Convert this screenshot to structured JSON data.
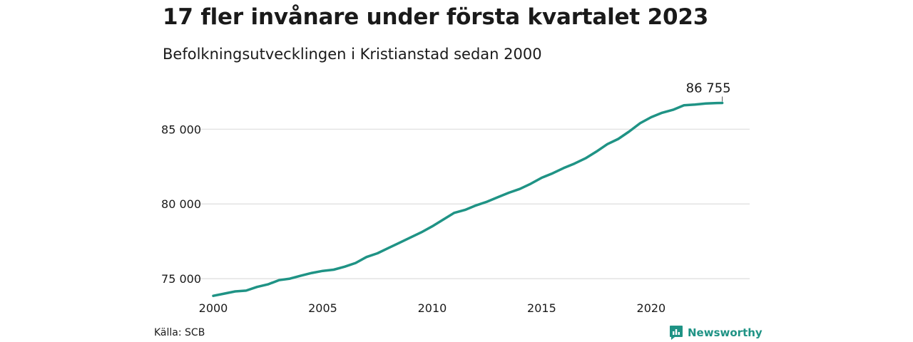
{
  "header": {
    "title": "17 fler invånare under första kvartalet 2023",
    "subtitle": "Befolkningsutvecklingen i Kristianstad sedan 2000"
  },
  "footer": {
    "source": "Källa: SCB",
    "brand": "Newsworthy",
    "brand_icon": "newsworthy-logo-icon"
  },
  "colors": {
    "line": "#1f9385",
    "grid": "#dddddd",
    "brand": "#1f9385"
  },
  "chart_data": {
    "type": "line",
    "x_axis": {
      "ticks": [
        "2000",
        "2005",
        "2010",
        "2015",
        "2020"
      ],
      "range": [
        2000,
        2024.5
      ]
    },
    "y_axis": {
      "ticks": [
        "75 000",
        "80 000",
        "85 000"
      ],
      "range": [
        74100,
        88400
      ]
    },
    "grid": "horizontal",
    "end_label": "86 755",
    "series": [
      {
        "points": [
          [
            2000.0,
            73850
          ],
          [
            2000.5,
            74000
          ],
          [
            2001.0,
            74150
          ],
          [
            2001.5,
            74200
          ],
          [
            2002.0,
            74450
          ],
          [
            2002.5,
            74620
          ],
          [
            2003.0,
            74900
          ],
          [
            2003.5,
            75000
          ],
          [
            2004.0,
            75200
          ],
          [
            2004.5,
            75380
          ],
          [
            2005.0,
            75520
          ],
          [
            2005.5,
            75600
          ],
          [
            2006.0,
            75800
          ],
          [
            2006.5,
            76050
          ],
          [
            2007.0,
            76450
          ],
          [
            2007.5,
            76700
          ],
          [
            2008.0,
            77050
          ],
          [
            2008.5,
            77400
          ],
          [
            2009.0,
            77750
          ],
          [
            2009.5,
            78100
          ],
          [
            2010.0,
            78500
          ],
          [
            2010.5,
            78950
          ],
          [
            2011.0,
            79400
          ],
          [
            2011.5,
            79600
          ],
          [
            2012.0,
            79900
          ],
          [
            2012.5,
            80150
          ],
          [
            2013.0,
            80450
          ],
          [
            2013.5,
            80750
          ],
          [
            2014.0,
            81000
          ],
          [
            2014.5,
            81350
          ],
          [
            2015.0,
            81750
          ],
          [
            2015.5,
            82050
          ],
          [
            2016.0,
            82400
          ],
          [
            2016.5,
            82700
          ],
          [
            2017.0,
            83050
          ],
          [
            2017.5,
            83500
          ],
          [
            2018.0,
            84000
          ],
          [
            2018.5,
            84350
          ],
          [
            2019.0,
            84850
          ],
          [
            2019.5,
            85400
          ],
          [
            2020.0,
            85800
          ],
          [
            2020.5,
            86100
          ],
          [
            2021.0,
            86300
          ],
          [
            2021.5,
            86600
          ],
          [
            2022.0,
            86650
          ],
          [
            2022.5,
            86720
          ],
          [
            2023.0,
            86750
          ],
          [
            2023.25,
            86755
          ]
        ]
      }
    ]
  }
}
